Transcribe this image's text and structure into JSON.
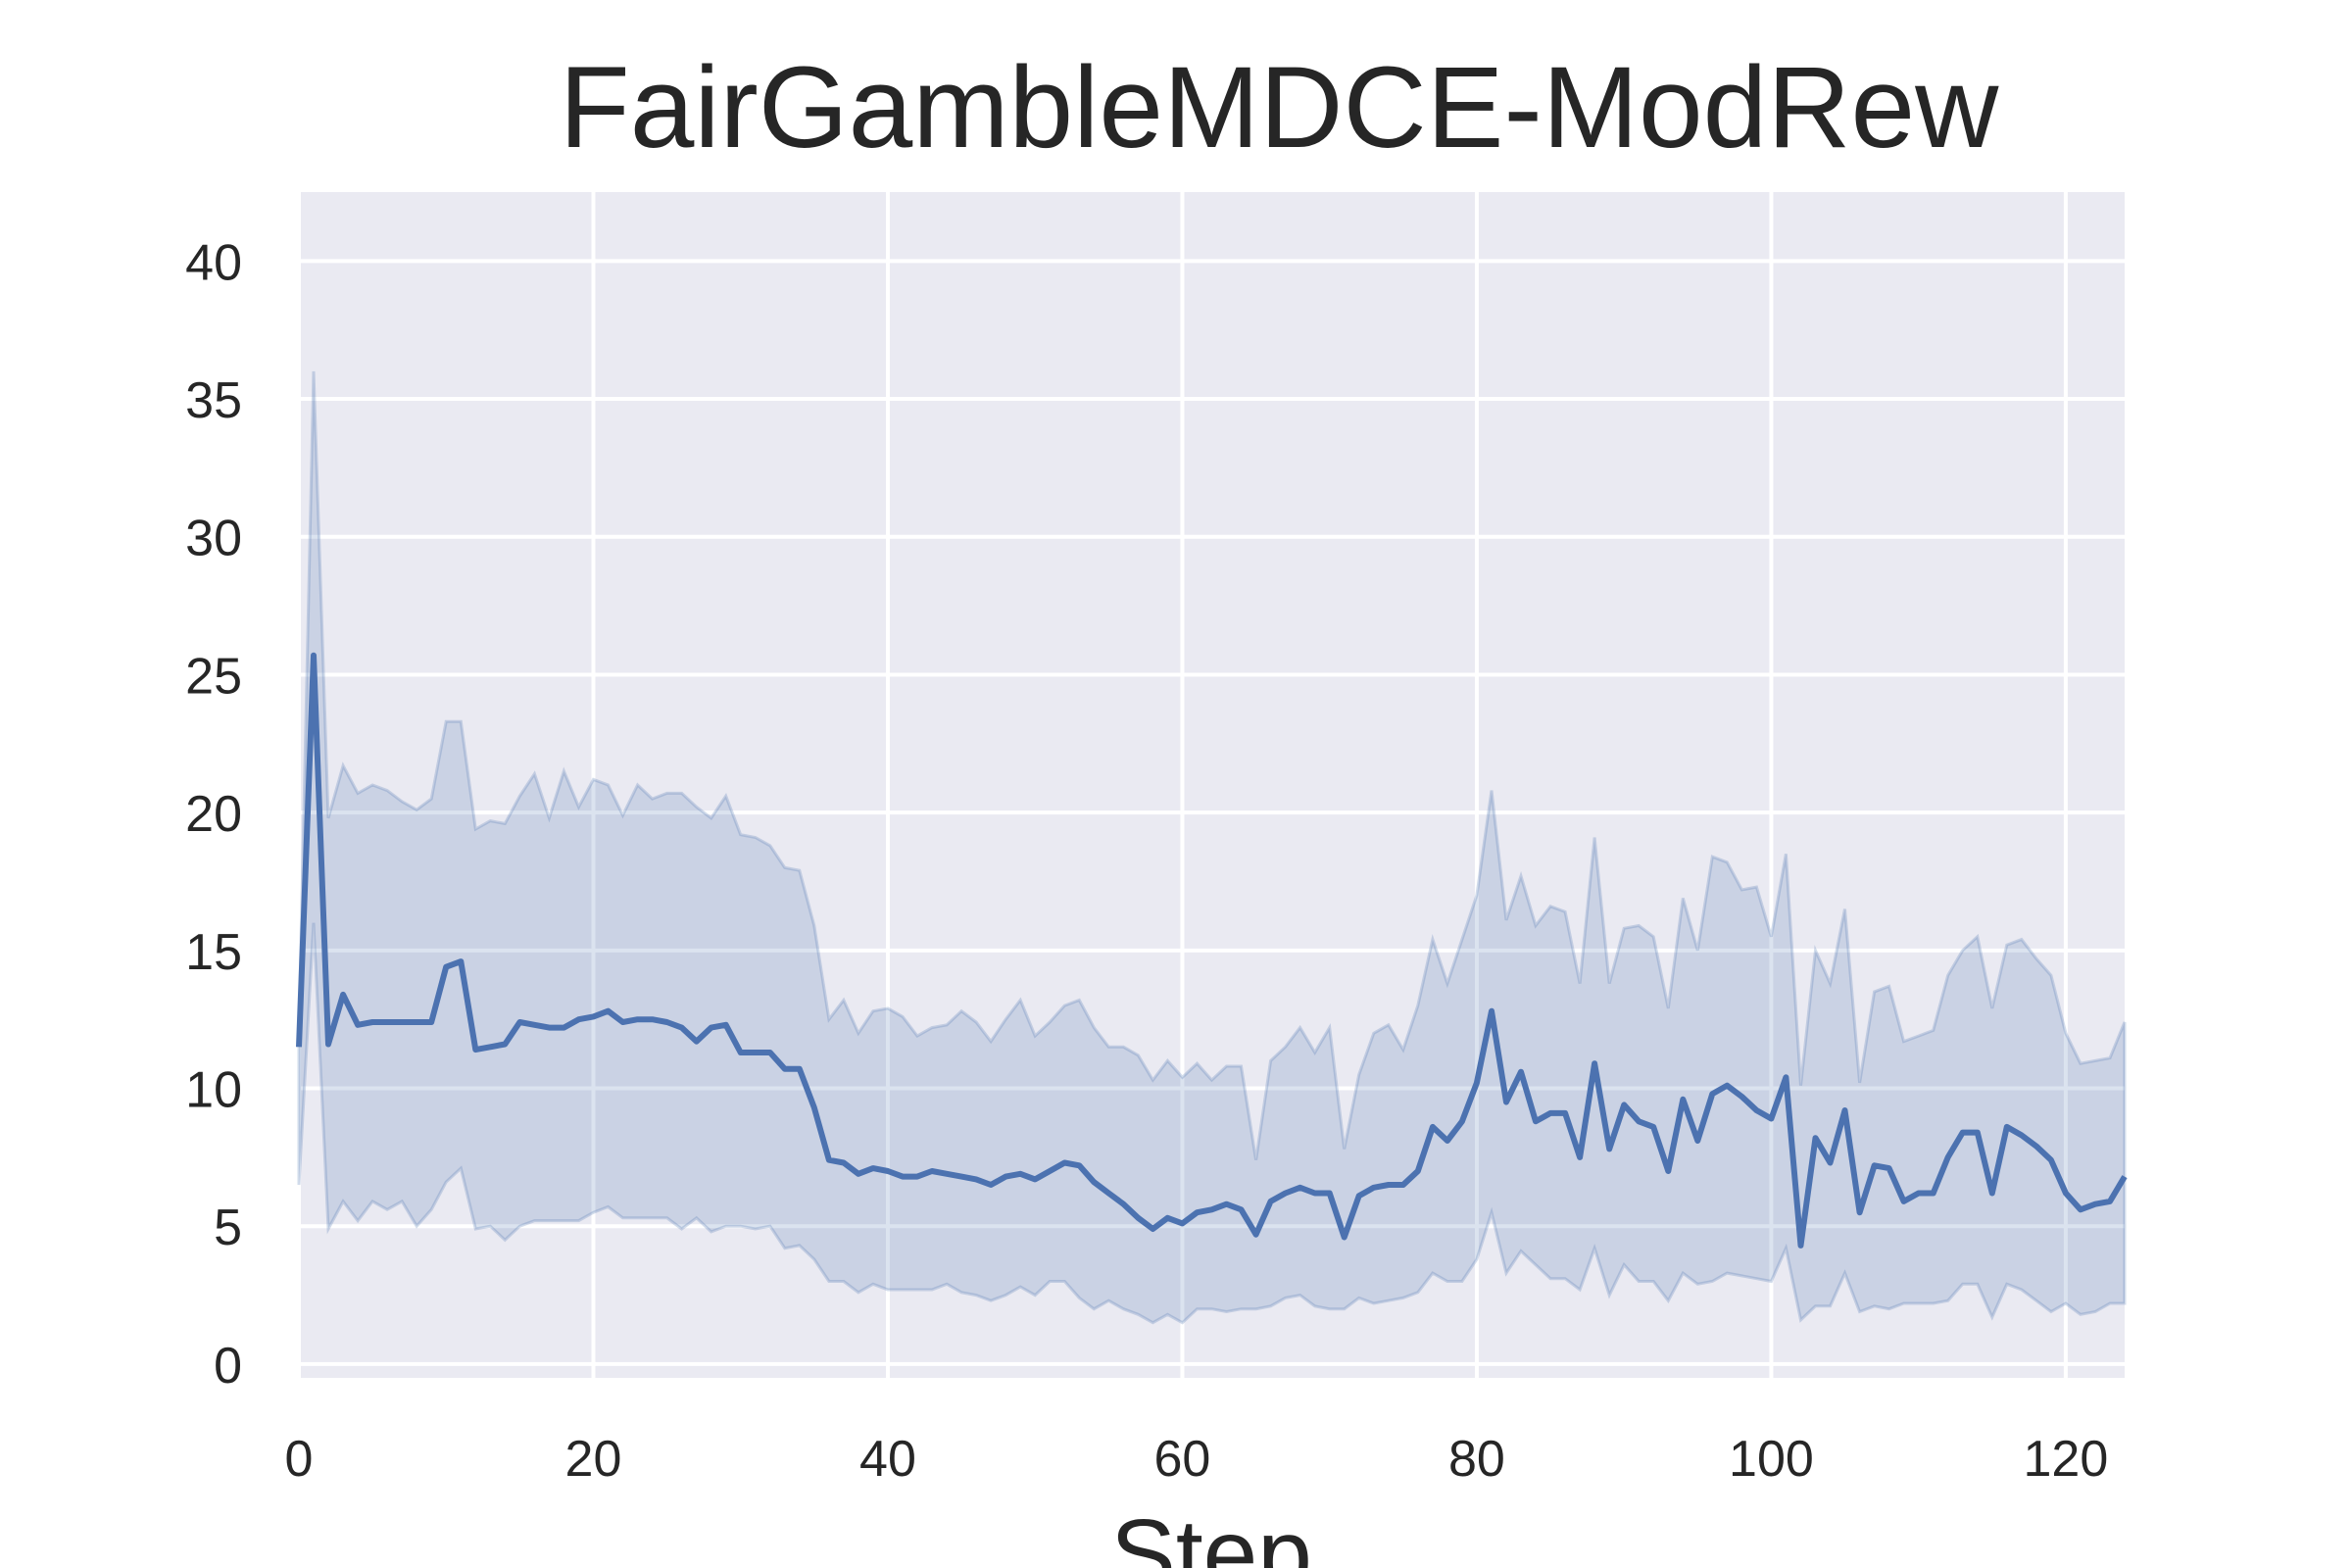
{
  "chart_data": {
    "type": "line",
    "title": "FairGambleMDCE-ModRew",
    "xlabel": "Step",
    "ylabel": "",
    "xlim": [
      0,
      124
    ],
    "ylim": [
      -0.5,
      42.5
    ],
    "xticks": [
      0,
      20,
      40,
      60,
      80,
      100,
      120
    ],
    "yticks": [
      0,
      5,
      10,
      15,
      20,
      25,
      30,
      35,
      40
    ],
    "grid": true,
    "legend": "none",
    "colors": {
      "line": "#4c72b0",
      "axes_bg": "#eaeaf2",
      "grid": "#ffffff"
    },
    "series": [
      {
        "x": [
          0,
          1,
          2,
          3,
          4,
          5,
          6,
          7,
          8,
          9,
          10,
          11,
          12,
          13,
          14,
          15,
          16,
          17,
          18,
          19,
          20,
          21,
          22,
          23,
          24,
          25,
          26,
          27,
          28,
          29,
          30,
          31,
          32,
          33,
          34,
          35,
          36,
          37,
          38,
          39,
          40,
          41,
          42,
          43,
          44,
          45,
          46,
          47,
          48,
          49,
          50,
          51,
          52,
          53,
          54,
          55,
          56,
          57,
          58,
          59,
          60,
          61,
          62,
          63,
          64,
          65,
          66,
          67,
          68,
          69,
          70,
          71,
          72,
          73,
          74,
          75,
          76,
          77,
          78,
          79,
          80,
          81,
          82,
          83,
          84,
          85,
          86,
          87,
          88,
          89,
          90,
          91,
          92,
          93,
          94,
          95,
          96,
          97,
          98,
          99,
          100,
          101,
          102,
          103,
          104,
          105,
          106,
          107,
          108,
          109,
          110,
          111,
          112,
          113,
          114,
          115,
          116,
          117,
          118,
          119,
          120,
          121,
          122,
          123,
          124
        ],
        "y": [
          11.5,
          25.7,
          11.6,
          13.4,
          12.3,
          12.4,
          12.4,
          12.4,
          12.4,
          12.4,
          14.4,
          14.6,
          11.4,
          11.5,
          11.6,
          12.4,
          12.3,
          12.2,
          12.2,
          12.5,
          12.6,
          12.8,
          12.4,
          12.5,
          12.5,
          12.4,
          12.2,
          11.7,
          12.2,
          12.3,
          11.3,
          11.3,
          11.3,
          10.7,
          10.7,
          9.3,
          7.4,
          7.3,
          6.9,
          7.1,
          7.0,
          6.8,
          6.8,
          7.0,
          6.9,
          6.8,
          6.7,
          6.5,
          6.8,
          6.9,
          6.7,
          7.0,
          7.3,
          7.2,
          6.6,
          6.2,
          5.8,
          5.3,
          4.9,
          5.3,
          5.1,
          5.5,
          5.6,
          5.8,
          5.6,
          4.7,
          5.9,
          6.2,
          6.4,
          6.2,
          6.2,
          4.6,
          6.1,
          6.4,
          6.5,
          6.5,
          7.0,
          8.6,
          8.1,
          8.8,
          10.2,
          12.8,
          9.5,
          10.6,
          8.8,
          9.1,
          9.1,
          7.5,
          10.9,
          7.8,
          9.4,
          8.8,
          8.6,
          7.0,
          9.6,
          8.1,
          9.8,
          10.1,
          9.7,
          9.2,
          8.9,
          10.4,
          4.3,
          8.2,
          7.3,
          9.2,
          5.5,
          7.2,
          7.1,
          5.9,
          6.2,
          6.2,
          7.5,
          8.4,
          8.4,
          6.2,
          8.6,
          8.3,
          7.9,
          7.4,
          6.2,
          5.6,
          5.8,
          5.9,
          6.8
        ],
        "y_lower": [
          6.5,
          16.0,
          4.9,
          5.9,
          5.2,
          5.9,
          5.6,
          5.9,
          5.0,
          5.6,
          6.6,
          7.1,
          4.9,
          5.0,
          4.5,
          5.0,
          5.2,
          5.2,
          5.2,
          5.2,
          5.5,
          5.7,
          5.3,
          5.3,
          5.3,
          5.3,
          4.9,
          5.3,
          4.8,
          5.0,
          5.0,
          4.9,
          5.0,
          4.2,
          4.3,
          3.8,
          3.0,
          3.0,
          2.6,
          2.9,
          2.7,
          2.7,
          2.7,
          2.7,
          2.9,
          2.6,
          2.5,
          2.3,
          2.5,
          2.8,
          2.5,
          3.0,
          3.0,
          2.4,
          2.0,
          2.3,
          2.0,
          1.8,
          1.5,
          1.8,
          1.5,
          2.0,
          2.0,
          1.9,
          2.0,
          2.0,
          2.1,
          2.4,
          2.5,
          2.1,
          2.0,
          2.0,
          2.4,
          2.2,
          2.3,
          2.4,
          2.6,
          3.3,
          3.0,
          3.0,
          3.8,
          5.5,
          3.3,
          4.1,
          3.6,
          3.1,
          3.1,
          2.7,
          4.2,
          2.5,
          3.6,
          3.0,
          3.0,
          2.3,
          3.3,
          2.9,
          3.0,
          3.3,
          3.2,
          3.1,
          3.0,
          4.2,
          1.6,
          2.1,
          2.1,
          3.3,
          1.9,
          2.1,
          2.0,
          2.2,
          2.2,
          2.2,
          2.3,
          2.9,
          2.9,
          1.7,
          2.9,
          2.7,
          2.3,
          1.9,
          2.2,
          1.8,
          1.9,
          2.2,
          2.2
        ],
        "y_upper": [
          12.0,
          36.0,
          19.8,
          21.7,
          20.7,
          21.0,
          20.8,
          20.4,
          20.1,
          20.5,
          23.3,
          23.3,
          19.4,
          19.7,
          19.6,
          20.6,
          21.4,
          19.8,
          21.5,
          20.2,
          21.2,
          21.0,
          19.9,
          21.0,
          20.5,
          20.7,
          20.7,
          20.2,
          19.8,
          20.6,
          19.2,
          19.1,
          18.8,
          18.0,
          17.9,
          15.9,
          12.5,
          13.2,
          12.0,
          12.8,
          12.9,
          12.6,
          11.9,
          12.2,
          12.3,
          12.8,
          12.4,
          11.7,
          12.5,
          13.2,
          11.9,
          12.4,
          13.0,
          13.2,
          12.2,
          11.5,
          11.5,
          11.2,
          10.3,
          11.0,
          10.4,
          10.9,
          10.3,
          10.8,
          10.8,
          7.4,
          11.0,
          11.5,
          12.2,
          11.3,
          12.2,
          7.8,
          10.5,
          12.0,
          12.3,
          11.4,
          13.0,
          15.4,
          13.8,
          15.4,
          17.0,
          20.8,
          16.1,
          17.7,
          15.9,
          16.6,
          16.4,
          13.8,
          19.1,
          13.8,
          15.8,
          15.9,
          15.5,
          12.9,
          16.9,
          15.0,
          18.4,
          18.2,
          17.2,
          17.3,
          15.5,
          18.5,
          10.1,
          15.0,
          13.8,
          16.5,
          10.2,
          13.5,
          13.7,
          11.7,
          11.9,
          12.1,
          14.1,
          15.0,
          15.5,
          12.9,
          15.2,
          15.4,
          14.7,
          14.1,
          12.0,
          10.9,
          11.0,
          11.1,
          12.4
        ]
      }
    ]
  }
}
